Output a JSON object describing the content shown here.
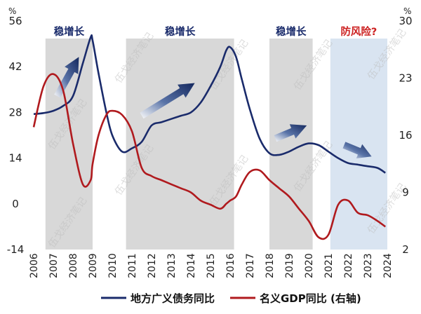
{
  "chart_data": {
    "type": "line",
    "x": [
      2006,
      2006.5,
      2007,
      2007.5,
      2008,
      2008.5,
      2008.9,
      2009,
      2009.3,
      2009.7,
      2010,
      2010.5,
      2011,
      2011.5,
      2012,
      2012.5,
      2013,
      2013.5,
      2014,
      2014.5,
      2015,
      2015.5,
      2015.8,
      2016,
      2016.3,
      2016.6,
      2017,
      2017.5,
      2018,
      2018.5,
      2019,
      2019.5,
      2020,
      2020.5,
      2021,
      2021.5,
      2022,
      2022.5,
      2023,
      2023.5,
      2023.9
    ],
    "x_ticks": [
      "2006",
      "2007",
      "2008",
      "2009",
      "2010",
      "2011",
      "2012",
      "2013",
      "2014",
      "2015",
      "2016",
      "2017",
      "2018",
      "2019",
      "2020",
      "2021",
      "2022",
      "2023",
      "2024"
    ],
    "series": [
      {
        "name": "地方广义债务同比",
        "axis": "left",
        "color": "#1a2b6b",
        "values": [
          27.5,
          27.8,
          28.5,
          30,
          33,
          43,
          51,
          50,
          40,
          28,
          21,
          16,
          17,
          19,
          24,
          25,
          26,
          27,
          28,
          31,
          36,
          42,
          47,
          48,
          45,
          38,
          29,
          20,
          15.5,
          15,
          16,
          17.5,
          18.5,
          18,
          16,
          14,
          12.5,
          12,
          11.5,
          11,
          9.5
        ]
      },
      {
        "name": "名义GDP同比 (右轴)",
        "axis": "right",
        "color": "#b01a1e",
        "values": [
          17,
          22,
          23.5,
          21.5,
          15,
          10,
          10.5,
          12.5,
          16,
          18.5,
          19,
          18.5,
          16.5,
          12,
          11,
          10.5,
          10,
          9.5,
          9,
          8,
          7.5,
          7,
          7.6,
          8,
          8.5,
          10,
          11.5,
          11.7,
          10.5,
          9.5,
          8.5,
          7,
          5.5,
          3.5,
          3.8,
          7.5,
          8,
          6.5,
          6.2,
          5.5,
          4.8
        ]
      }
    ],
    "left_axis": {
      "unit": "%",
      "ylim": [
        -14,
        56
      ],
      "ticks": [
        "56",
        "42",
        "28",
        "14",
        "0",
        "-14"
      ]
    },
    "right_axis": {
      "unit": "%",
      "ylim": [
        2,
        30
      ],
      "ticks": [
        "30",
        "23",
        "16",
        "9",
        "2"
      ]
    },
    "shaded_periods": [
      {
        "label": "稳增长",
        "from": 2006.6,
        "to": 2009.0,
        "fill": "#d8d8d8",
        "label_color": "#1a2b6b"
      },
      {
        "label": "稳增长",
        "from": 2010.7,
        "to": 2016.2,
        "fill": "#d8d8d8",
        "label_color": "#1a2b6b"
      },
      {
        "label": "稳增长",
        "from": 2018.0,
        "to": 2020.2,
        "fill": "#d8d8d8",
        "label_color": "#1a2b6b"
      },
      {
        "label": "防风险?",
        "from": 2021.1,
        "to": 2024.0,
        "fill": "#d9e4f1",
        "label_color": "#cc1f1f"
      }
    ],
    "arrows": [
      {
        "direction": "up",
        "x0": 2007.2,
        "y0": 33,
        "x1": 2008.3,
        "y1": 45
      },
      {
        "direction": "up",
        "x0": 2011.5,
        "y0": 27,
        "x1": 2014.2,
        "y1": 37
      },
      {
        "direction": "up",
        "x0": 2018.3,
        "y0": 20,
        "x1": 2019.9,
        "y1": 24
      },
      {
        "direction": "down",
        "x0": 2021.8,
        "y0": 18,
        "x1": 2023.2,
        "y1": 14.5
      }
    ],
    "watermark": "伍戈经济笔记",
    "legend_position": "bottom",
    "grid": false
  }
}
